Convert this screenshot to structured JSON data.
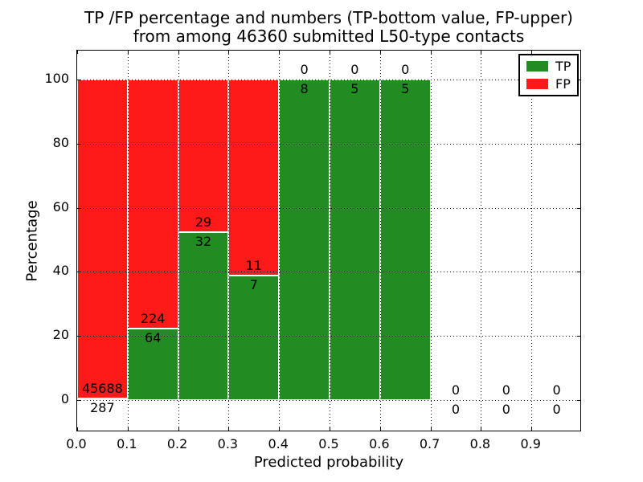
{
  "chart_data": {
    "type": "bar",
    "stacked": true,
    "title": "TP /FP percentage and numbers (TP-bottom value, FP-upper)\nfrom among 46360 submitted L50-type contacts",
    "title_lines": [
      "TP /FP percentage and numbers (TP-bottom value, FP-upper)",
      "from among 46360 submitted L50-type contacts"
    ],
    "total_submitted": 46360,
    "xlabel": "Predicted probability",
    "ylabel": "Percentage",
    "xlim": [
      0.0,
      1.0
    ],
    "ylim": [
      -10,
      109
    ],
    "xticks": [
      "0.0",
      "0.1",
      "0.2",
      "0.3",
      "0.4",
      "0.5",
      "0.6",
      "0.7",
      "0.8",
      "0.9"
    ],
    "yticks": [
      "0",
      "20",
      "40",
      "60",
      "80",
      "100"
    ],
    "grid": "dotted black, both axes, drawn over bars",
    "legend_position": "upper right",
    "series": [
      {
        "name": "TP",
        "color": "#228b22"
      },
      {
        "name": "FP",
        "color": "#ff1a1a"
      }
    ],
    "bins": [
      {
        "x0": 0.0,
        "x1": 0.1,
        "tp_count": 287,
        "fp_count": 45688,
        "tp_percent": 0.62,
        "fp_percent": 99.38
      },
      {
        "x0": 0.1,
        "x1": 0.2,
        "tp_count": 64,
        "fp_count": 224,
        "tp_percent": 22.22,
        "fp_percent": 77.78
      },
      {
        "x0": 0.2,
        "x1": 0.3,
        "tp_count": 32,
        "fp_count": 29,
        "tp_percent": 52.46,
        "fp_percent": 47.54
      },
      {
        "x0": 0.3,
        "x1": 0.4,
        "tp_count": 7,
        "fp_count": 11,
        "tp_percent": 38.89,
        "fp_percent": 61.11
      },
      {
        "x0": 0.4,
        "x1": 0.5,
        "tp_count": 8,
        "fp_count": 0,
        "tp_percent": 100,
        "fp_percent": 0
      },
      {
        "x0": 0.5,
        "x1": 0.6,
        "tp_count": 5,
        "fp_count": 0,
        "tp_percent": 100,
        "fp_percent": 0
      },
      {
        "x0": 0.6,
        "x1": 0.7,
        "tp_count": 5,
        "fp_count": 0,
        "tp_percent": 100,
        "fp_percent": 0
      },
      {
        "x0": 0.7,
        "x1": 0.8,
        "tp_count": 0,
        "fp_count": 0,
        "tp_percent": null,
        "fp_percent": null
      },
      {
        "x0": 0.8,
        "x1": 0.9,
        "tp_count": 0,
        "fp_count": 0,
        "tp_percent": null,
        "fp_percent": null
      },
      {
        "x0": 0.9,
        "x1": 1.0,
        "tp_count": 0,
        "fp_count": 0,
        "tp_percent": null,
        "fp_percent": null
      }
    ]
  }
}
